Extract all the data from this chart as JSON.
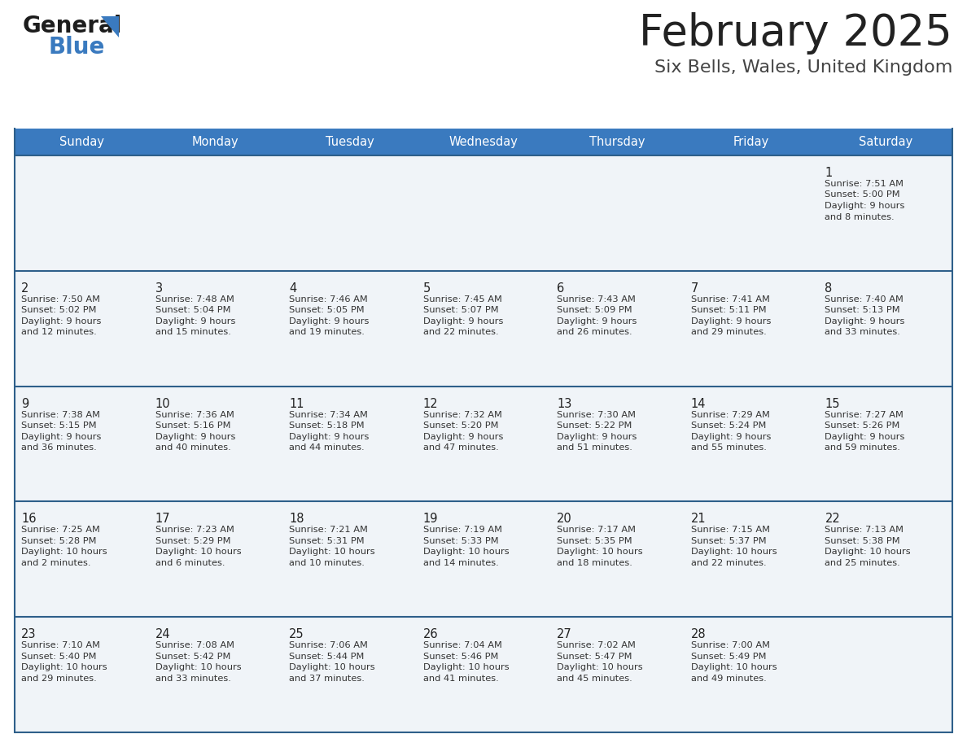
{
  "title": "February 2025",
  "subtitle": "Six Bells, Wales, United Kingdom",
  "days_of_week": [
    "Sunday",
    "Monday",
    "Tuesday",
    "Wednesday",
    "Thursday",
    "Friday",
    "Saturday"
  ],
  "header_bg": "#3a7abf",
  "header_text": "#ffffff",
  "cell_bg": "#f0f4f8",
  "row_line_color": "#2e5f8a",
  "title_color": "#222222",
  "subtitle_color": "#444444",
  "day_number_color": "#222222",
  "cell_text_color": "#333333",
  "calendar_data": [
    [
      null,
      null,
      null,
      null,
      null,
      null,
      {
        "day": "1",
        "sunrise": "7:51 AM",
        "sunset": "5:00 PM",
        "daylight": "9 hours",
        "daylight2": "and 8 minutes."
      }
    ],
    [
      {
        "day": "2",
        "sunrise": "7:50 AM",
        "sunset": "5:02 PM",
        "daylight": "9 hours",
        "daylight2": "and 12 minutes."
      },
      {
        "day": "3",
        "sunrise": "7:48 AM",
        "sunset": "5:04 PM",
        "daylight": "9 hours",
        "daylight2": "and 15 minutes."
      },
      {
        "day": "4",
        "sunrise": "7:46 AM",
        "sunset": "5:05 PM",
        "daylight": "9 hours",
        "daylight2": "and 19 minutes."
      },
      {
        "day": "5",
        "sunrise": "7:45 AM",
        "sunset": "5:07 PM",
        "daylight": "9 hours",
        "daylight2": "and 22 minutes."
      },
      {
        "day": "6",
        "sunrise": "7:43 AM",
        "sunset": "5:09 PM",
        "daylight": "9 hours",
        "daylight2": "and 26 minutes."
      },
      {
        "day": "7",
        "sunrise": "7:41 AM",
        "sunset": "5:11 PM",
        "daylight": "9 hours",
        "daylight2": "and 29 minutes."
      },
      {
        "day": "8",
        "sunrise": "7:40 AM",
        "sunset": "5:13 PM",
        "daylight": "9 hours",
        "daylight2": "and 33 minutes."
      }
    ],
    [
      {
        "day": "9",
        "sunrise": "7:38 AM",
        "sunset": "5:15 PM",
        "daylight": "9 hours",
        "daylight2": "and 36 minutes."
      },
      {
        "day": "10",
        "sunrise": "7:36 AM",
        "sunset": "5:16 PM",
        "daylight": "9 hours",
        "daylight2": "and 40 minutes."
      },
      {
        "day": "11",
        "sunrise": "7:34 AM",
        "sunset": "5:18 PM",
        "daylight": "9 hours",
        "daylight2": "and 44 minutes."
      },
      {
        "day": "12",
        "sunrise": "7:32 AM",
        "sunset": "5:20 PM",
        "daylight": "9 hours",
        "daylight2": "and 47 minutes."
      },
      {
        "day": "13",
        "sunrise": "7:30 AM",
        "sunset": "5:22 PM",
        "daylight": "9 hours",
        "daylight2": "and 51 minutes."
      },
      {
        "day": "14",
        "sunrise": "7:29 AM",
        "sunset": "5:24 PM",
        "daylight": "9 hours",
        "daylight2": "and 55 minutes."
      },
      {
        "day": "15",
        "sunrise": "7:27 AM",
        "sunset": "5:26 PM",
        "daylight": "9 hours",
        "daylight2": "and 59 minutes."
      }
    ],
    [
      {
        "day": "16",
        "sunrise": "7:25 AM",
        "sunset": "5:28 PM",
        "daylight": "10 hours",
        "daylight2": "and 2 minutes."
      },
      {
        "day": "17",
        "sunrise": "7:23 AM",
        "sunset": "5:29 PM",
        "daylight": "10 hours",
        "daylight2": "and 6 minutes."
      },
      {
        "day": "18",
        "sunrise": "7:21 AM",
        "sunset": "5:31 PM",
        "daylight": "10 hours",
        "daylight2": "and 10 minutes."
      },
      {
        "day": "19",
        "sunrise": "7:19 AM",
        "sunset": "5:33 PM",
        "daylight": "10 hours",
        "daylight2": "and 14 minutes."
      },
      {
        "day": "20",
        "sunrise": "7:17 AM",
        "sunset": "5:35 PM",
        "daylight": "10 hours",
        "daylight2": "and 18 minutes."
      },
      {
        "day": "21",
        "sunrise": "7:15 AM",
        "sunset": "5:37 PM",
        "daylight": "10 hours",
        "daylight2": "and 22 minutes."
      },
      {
        "day": "22",
        "sunrise": "7:13 AM",
        "sunset": "5:38 PM",
        "daylight": "10 hours",
        "daylight2": "and 25 minutes."
      }
    ],
    [
      {
        "day": "23",
        "sunrise": "7:10 AM",
        "sunset": "5:40 PM",
        "daylight": "10 hours",
        "daylight2": "and 29 minutes."
      },
      {
        "day": "24",
        "sunrise": "7:08 AM",
        "sunset": "5:42 PM",
        "daylight": "10 hours",
        "daylight2": "and 33 minutes."
      },
      {
        "day": "25",
        "sunrise": "7:06 AM",
        "sunset": "5:44 PM",
        "daylight": "10 hours",
        "daylight2": "and 37 minutes."
      },
      {
        "day": "26",
        "sunrise": "7:04 AM",
        "sunset": "5:46 PM",
        "daylight": "10 hours",
        "daylight2": "and 41 minutes."
      },
      {
        "day": "27",
        "sunrise": "7:02 AM",
        "sunset": "5:47 PM",
        "daylight": "10 hours",
        "daylight2": "and 45 minutes."
      },
      {
        "day": "28",
        "sunrise": "7:00 AM",
        "sunset": "5:49 PM",
        "daylight": "10 hours",
        "daylight2": "and 49 minutes."
      },
      null
    ]
  ]
}
